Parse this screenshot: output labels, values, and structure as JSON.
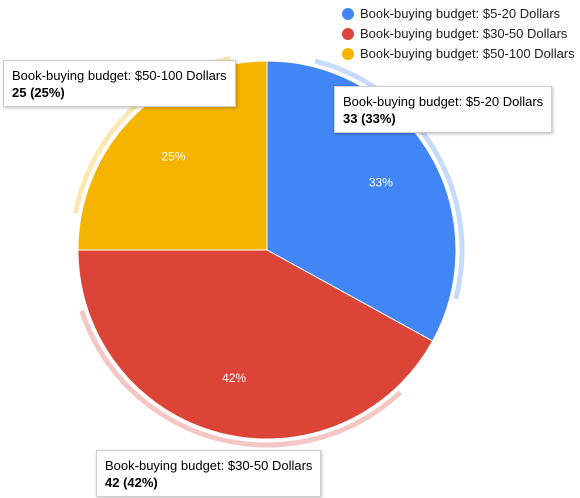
{
  "chart_data": {
    "type": "pie",
    "slices": [
      {
        "label": "Book-buying budget: $5-20 Dollars",
        "value": 33,
        "percent_label": "33%",
        "tooltip_value": "33 (33%)",
        "color": "#4285f4"
      },
      {
        "label": "Book-buying budget: $30-50 Dollars",
        "value": 42,
        "percent_label": "42%",
        "tooltip_value": "42 (42%)",
        "color": "#db4437"
      },
      {
        "label": "Book-buying budget: $50-100 Dollars",
        "value": 25,
        "percent_label": "25%",
        "tooltip_value": "25 (25%)",
        "color": "#f4b400"
      }
    ],
    "legend_position": "top-right",
    "start_angle_deg": 0,
    "direction": "clockwise"
  }
}
